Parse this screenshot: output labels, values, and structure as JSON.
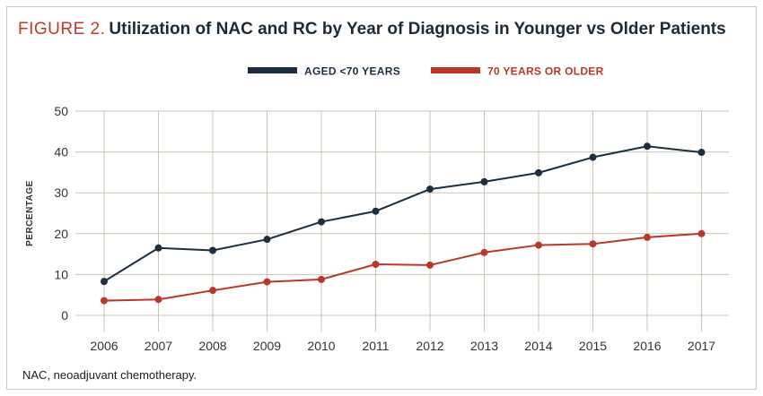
{
  "figure": {
    "label": "FIGURE 2.",
    "title": "Utilization of NAC and RC by Year of Diagnosis in Younger vs Older Patients",
    "footnote": "NAC, neoadjuvant chemotherapy."
  },
  "colors": {
    "series_young": "#1c2e3f",
    "series_old": "#b8382a",
    "grid": "#c9c4b3",
    "title_label": "#c0392b"
  },
  "chart_data": {
    "type": "line",
    "title": "Utilization of NAC and RC by Year of Diagnosis in Younger vs Older Patients",
    "xlabel": "",
    "ylabel": "PERCENTAGE",
    "x": [
      2006,
      2007,
      2008,
      2009,
      2010,
      2011,
      2012,
      2013,
      2014,
      2015,
      2016,
      2017
    ],
    "x_tick_labels": [
      "2006",
      "2007",
      "2008",
      "2009",
      "2010",
      "2011",
      "2012",
      "2013",
      "2014",
      "2015",
      "2016",
      "2017"
    ],
    "ylim": [
      0,
      50
    ],
    "y_ticks": [
      0,
      10,
      20,
      30,
      40,
      50
    ],
    "grid": true,
    "legend_position": "top-center",
    "series": [
      {
        "name": "AGED <70 YEARS",
        "values": [
          8.3,
          16.5,
          15.9,
          18.6,
          22.9,
          25.5,
          30.9,
          32.7,
          34.9,
          38.7,
          41.4,
          39.9
        ]
      },
      {
        "name": "70 YEARS OR OLDER",
        "values": [
          3.6,
          3.9,
          6.1,
          8.2,
          8.8,
          12.5,
          12.3,
          15.4,
          17.2,
          17.5,
          19.1,
          20.0
        ]
      }
    ]
  }
}
